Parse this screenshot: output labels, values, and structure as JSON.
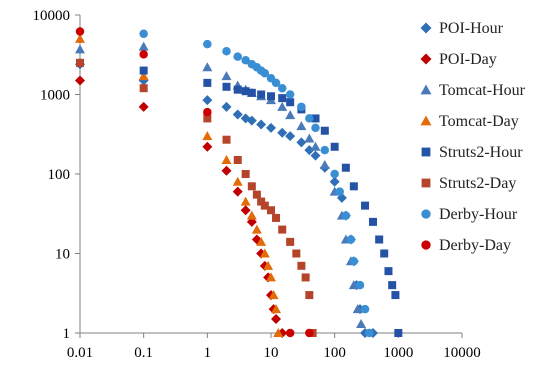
{
  "chart_data": {
    "type": "scatter",
    "title": "",
    "xlabel": "",
    "ylabel": "",
    "x_scale": "log",
    "y_scale": "log",
    "xlim": [
      0.01,
      10000
    ],
    "ylim": [
      1,
      10000
    ],
    "x_ticks": [
      "0.01",
      "0.1",
      "1",
      "10",
      "100",
      "1000",
      "10000"
    ],
    "y_ticks": [
      "1",
      "10",
      "100",
      "1000",
      "10000"
    ],
    "grid": false,
    "legend_position": "right",
    "series": [
      {
        "name": "POI-Hour",
        "marker": "diamond",
        "color": "#2f6fb6",
        "points": [
          [
            0.01,
            2400
          ],
          [
            0.1,
            1500
          ],
          [
            1,
            850
          ],
          [
            2,
            700
          ],
          [
            3,
            560
          ],
          [
            4,
            500
          ],
          [
            5,
            470
          ],
          [
            7,
            420
          ],
          [
            10,
            380
          ],
          [
            15,
            330
          ],
          [
            20,
            300
          ],
          [
            30,
            250
          ],
          [
            40,
            200
          ],
          [
            50,
            170
          ],
          [
            70,
            120
          ],
          [
            100,
            80
          ],
          [
            130,
            50
          ],
          [
            150,
            30
          ],
          [
            180,
            15
          ],
          [
            200,
            8
          ],
          [
            220,
            4
          ],
          [
            250,
            2
          ],
          [
            300,
            1
          ],
          [
            400,
            1
          ]
        ]
      },
      {
        "name": "POI-Day",
        "marker": "diamond",
        "color": "#c00000",
        "points": [
          [
            0.01,
            1500
          ],
          [
            0.1,
            700
          ],
          [
            1,
            220
          ],
          [
            2,
            110
          ],
          [
            3,
            60
          ],
          [
            4,
            35
          ],
          [
            5,
            25
          ],
          [
            6,
            15
          ],
          [
            7,
            10
          ],
          [
            8,
            7
          ],
          [
            9,
            5
          ],
          [
            10,
            3
          ],
          [
            11,
            2
          ],
          [
            12,
            1.5
          ],
          [
            15,
            1
          ]
        ]
      },
      {
        "name": "Tomcat-Hour",
        "marker": "triangle",
        "color": "#4a7ab8",
        "points": [
          [
            0.01,
            3700
          ],
          [
            0.1,
            4000
          ],
          [
            1,
            2200
          ],
          [
            2,
            1700
          ],
          [
            3,
            1300
          ],
          [
            4,
            1150
          ],
          [
            5,
            1050
          ],
          [
            7,
            950
          ],
          [
            10,
            850
          ],
          [
            15,
            700
          ],
          [
            20,
            550
          ],
          [
            30,
            400
          ],
          [
            40,
            280
          ],
          [
            50,
            220
          ],
          [
            70,
            130
          ],
          [
            100,
            60
          ],
          [
            130,
            30
          ],
          [
            150,
            15
          ],
          [
            180,
            8
          ],
          [
            200,
            4
          ],
          [
            230,
            2
          ],
          [
            260,
            1.3
          ]
        ]
      },
      {
        "name": "Tomcat-Day",
        "marker": "triangle",
        "color": "#e36c09",
        "points": [
          [
            0.01,
            5000
          ],
          [
            0.1,
            1700
          ],
          [
            1,
            300
          ],
          [
            2,
            150
          ],
          [
            3,
            80
          ],
          [
            4,
            45
          ],
          [
            5,
            30
          ],
          [
            6,
            20
          ],
          [
            7,
            14
          ],
          [
            8,
            10
          ],
          [
            9,
            7
          ],
          [
            10,
            5
          ],
          [
            11,
            3
          ],
          [
            12,
            2
          ],
          [
            13,
            1
          ]
        ]
      },
      {
        "name": "Struts2-Hour",
        "marker": "square",
        "color": "#2452a5",
        "points": [
          [
            0.01,
            2500
          ],
          [
            0.1,
            2000
          ],
          [
            1,
            1400
          ],
          [
            2,
            1250
          ],
          [
            3,
            1150
          ],
          [
            4,
            1100
          ],
          [
            5,
            1050
          ],
          [
            7,
            1000
          ],
          [
            10,
            950
          ],
          [
            15,
            900
          ],
          [
            20,
            800
          ],
          [
            30,
            650
          ],
          [
            50,
            500
          ],
          [
            70,
            350
          ],
          [
            100,
            220
          ],
          [
            150,
            120
          ],
          [
            200,
            70
          ],
          [
            300,
            40
          ],
          [
            400,
            25
          ],
          [
            500,
            15
          ],
          [
            600,
            10
          ],
          [
            700,
            6
          ],
          [
            800,
            4
          ],
          [
            900,
            3
          ],
          [
            1000,
            1
          ]
        ]
      },
      {
        "name": "Struts2-Day",
        "marker": "square",
        "color": "#b5442a",
        "points": [
          [
            0.01,
            2500
          ],
          [
            0.1,
            1200
          ],
          [
            1,
            500
          ],
          [
            2,
            270
          ],
          [
            3,
            150
          ],
          [
            4,
            100
          ],
          [
            5,
            70
          ],
          [
            6,
            55
          ],
          [
            7,
            45
          ],
          [
            8,
            40
          ],
          [
            10,
            35
          ],
          [
            12,
            28
          ],
          [
            15,
            20
          ],
          [
            20,
            14
          ],
          [
            25,
            10
          ],
          [
            30,
            7
          ],
          [
            35,
            5
          ],
          [
            40,
            3
          ],
          [
            45,
            1
          ]
        ]
      },
      {
        "name": "Derby-Hour",
        "marker": "circle",
        "color": "#3a8fd4",
        "points": [
          [
            0.1,
            5800
          ],
          [
            1,
            4300
          ],
          [
            2,
            3500
          ],
          [
            3,
            3000
          ],
          [
            4,
            2700
          ],
          [
            5,
            2400
          ],
          [
            6,
            2200
          ],
          [
            7,
            2000
          ],
          [
            8,
            1850
          ],
          [
            10,
            1600
          ],
          [
            12,
            1400
          ],
          [
            15,
            1200
          ],
          [
            20,
            1000
          ],
          [
            30,
            700
          ],
          [
            40,
            500
          ],
          [
            50,
            380
          ],
          [
            70,
            200
          ],
          [
            100,
            100
          ],
          [
            120,
            60
          ],
          [
            150,
            30
          ],
          [
            180,
            15
          ],
          [
            200,
            8
          ],
          [
            250,
            4
          ],
          [
            300,
            2
          ],
          [
            350,
            1
          ]
        ]
      },
      {
        "name": "Derby-Day",
        "marker": "circle",
        "color": "#cc0000",
        "points": [
          [
            0.01,
            6200
          ],
          [
            0.1,
            3200
          ],
          [
            1,
            600
          ],
          [
            20,
            1
          ],
          [
            40,
            1
          ]
        ]
      }
    ]
  }
}
